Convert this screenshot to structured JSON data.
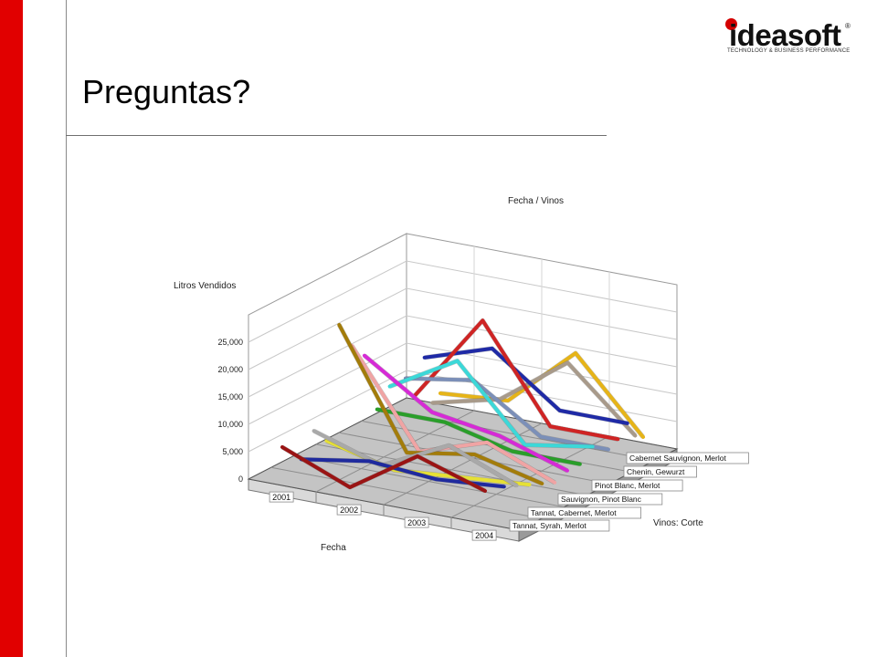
{
  "slide": {
    "title": "Preguntas?",
    "logo": {
      "name": "ideasoft",
      "registered": "®",
      "tagline": "TECHNOLOGY & BUSINESS PERFORMANCE"
    }
  },
  "colors": {
    "accent_bar": "#e10000"
  },
  "chart_data": {
    "type": "line",
    "view": "3d",
    "title": "Fecha / Vinos",
    "ylabel": "Litros Vendidos",
    "xlabel": "Fecha",
    "zlabel": "Vinos: Corte",
    "ylim": [
      0,
      30000
    ],
    "yticks": [
      0,
      5000,
      10000,
      15000,
      20000,
      25000
    ],
    "ytick_labels": [
      "0",
      "5,000",
      "10,000",
      "15,000",
      "20,000",
      "25,000"
    ],
    "categories": [
      "2001",
      "2002",
      "2003",
      "2004"
    ],
    "z_labels": [
      "Tannat, Syrah, Merlot",
      "Tannat, Cabernet, Merlot",
      "Sauvignon, Pinot Blanc",
      "Pinot Blanc, Merlot",
      "Chenin, Gewurzt",
      "Cabernet Sauvignon, Merlot"
    ],
    "series": [
      {
        "values": [
          7000,
          2000,
          10000,
          6000
        ],
        "color": "#9a1414",
        "depth": 0.0
      },
      {
        "values": [
          3000,
          5000,
          4000,
          5000
        ],
        "color": "#1f2a9e",
        "depth": 0.12
      },
      {
        "values": [
          7000,
          3000,
          9000,
          4000
        ],
        "color": "#a9a9a9",
        "depth": 0.2
      },
      {
        "values": [
          4000,
          1000,
          2000,
          3000
        ],
        "color": "#e6e035",
        "depth": 0.28
      },
      {
        "values": [
          24000,
          3000,
          5000,
          2000
        ],
        "color": "#a37c0a",
        "depth": 0.36
      },
      {
        "values": [
          19000,
          2000,
          6000,
          1000
        ],
        "color": "#f0a4a4",
        "depth": 0.44
      },
      {
        "values": [
          16000,
          8000,
          6000,
          2000
        ],
        "color": "#d62ad6",
        "depth": 0.52
      },
      {
        "values": [
          5000,
          5000,
          2000,
          2000
        ],
        "color": "#2a9e2a",
        "depth": 0.6
      },
      {
        "values": [
          8000,
          15000,
          2000,
          4000
        ],
        "color": "#3cd8d8",
        "depth": 0.68
      },
      {
        "values": [
          8000,
          10000,
          2000,
          2000
        ],
        "color": "#7b8fb8",
        "depth": 0.78
      },
      {
        "values": [
          4000,
          20000,
          3000,
          3000
        ],
        "color": "#cf2424",
        "depth": 0.84
      },
      {
        "values": [
          10000,
          14000,
          5000,
          5000
        ],
        "color": "#1f2aa6",
        "depth": 0.9
      },
      {
        "values": [
          1000,
          4000,
          13000,
          2000
        ],
        "color": "#a89a8a",
        "depth": 0.95
      },
      {
        "values": [
          2000,
          3000,
          14000,
          1000
        ],
        "color": "#e6b418",
        "depth": 1.0
      }
    ]
  }
}
